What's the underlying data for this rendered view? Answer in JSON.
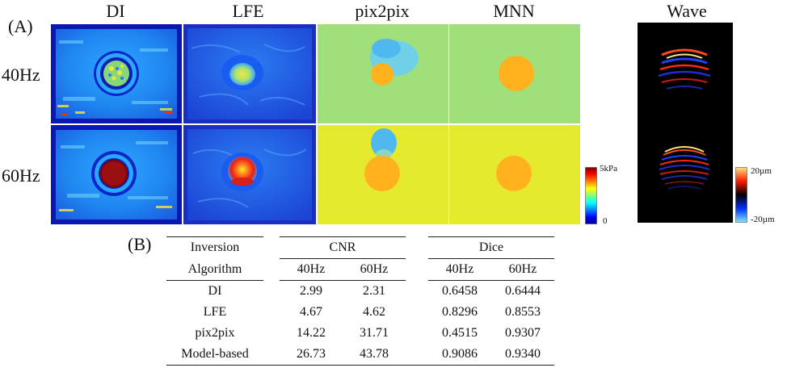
{
  "panel_a_label": "(A)",
  "panel_b_label": "(B)",
  "columns": [
    "DI",
    "LFE",
    "pix2pix",
    "MNN",
    "Wave"
  ],
  "rows": [
    "40Hz",
    "60Hz"
  ],
  "colorbar_stiffness": {
    "max_label": "5kPa",
    "min_label": "0"
  },
  "colorbar_wave": {
    "max_label": "20µm",
    "min_label": "-20µm"
  },
  "table": {
    "header1": {
      "inversion": "Inversion",
      "cnr": "CNR",
      "dice": "Dice"
    },
    "header2": {
      "algorithm": "Algorithm",
      "f1": "40Hz",
      "f2": "60Hz",
      "f3": "40Hz",
      "f4": "60Hz"
    },
    "rows": [
      {
        "name": "DI",
        "cnr40": "2.99",
        "cnr60": "2.31",
        "dice40": "0.6458",
        "dice60": "0.6444"
      },
      {
        "name": "LFE",
        "cnr40": "4.67",
        "cnr60": "4.62",
        "dice40": "0.8296",
        "dice60": "0.8553"
      },
      {
        "name": "pix2pix",
        "cnr40": "14.22",
        "cnr60": "31.71",
        "dice40": "0.4515",
        "dice60": "0.9307"
      },
      {
        "name": "Model-based",
        "cnr40": "26.73",
        "cnr60": "43.78",
        "dice40": "0.9086",
        "dice60": "0.9340"
      }
    ]
  }
}
